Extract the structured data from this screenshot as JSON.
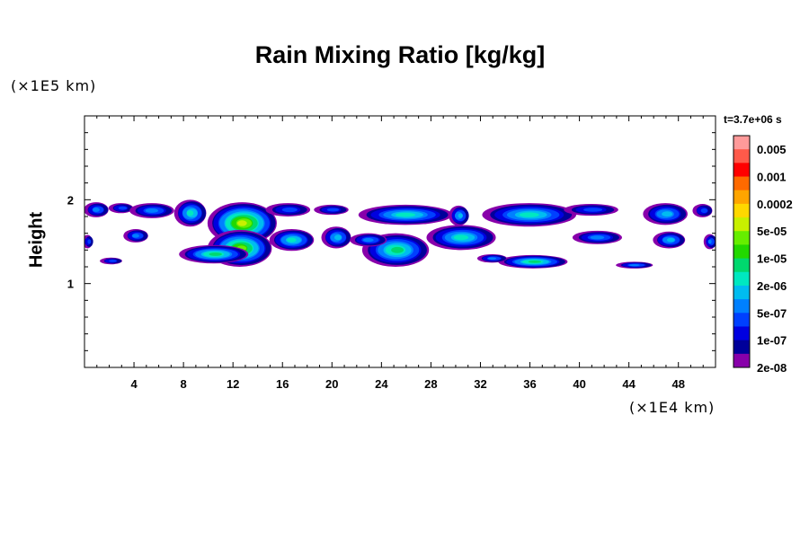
{
  "chart_data": {
    "type": "heatmap",
    "title": "Rain Mixing Ratio [kg/kg]",
    "ylabel": "Height",
    "xlabel": "",
    "x_unit_label": "(×1E4 km)",
    "y_unit_label": "(×1E5 km)",
    "time_label": "t=3.7e+06 s",
    "xlim": [
      0,
      51
    ],
    "ylim": [
      0,
      3
    ],
    "x_ticks": [
      "4",
      "8",
      "12",
      "16",
      "20",
      "24",
      "28",
      "32",
      "36",
      "40",
      "44",
      "48"
    ],
    "x_tick_values": [
      4,
      8,
      12,
      16,
      20,
      24,
      28,
      32,
      36,
      40,
      44,
      48
    ],
    "y_ticks": [
      "1",
      "2"
    ],
    "y_tick_values": [
      1,
      2
    ],
    "colorbar": {
      "labels": [
        "0.005",
        "0.001",
        "0.0002",
        "5e-05",
        "1e-05",
        "2e-06",
        "5e-07",
        "1e-07",
        "2e-08"
      ],
      "colors_top_to_bottom": [
        "#ff9a9a",
        "#ff5a4a",
        "#ff0000",
        "#ff6a00",
        "#ffa500",
        "#ffd800",
        "#c8f000",
        "#66ee00",
        "#22d800",
        "#00d86e",
        "#00e8c0",
        "#00bcf0",
        "#0080ff",
        "#0040ff",
        "#0000e0",
        "#00009a",
        "#8800aa"
      ]
    },
    "cells": [
      {
        "x": 1.0,
        "y": 1.88,
        "rx": 1.0,
        "ry": 0.09,
        "level": 4
      },
      {
        "x": 3.0,
        "y": 1.9,
        "rx": 1.0,
        "ry": 0.06,
        "level": 3
      },
      {
        "x": 5.5,
        "y": 1.87,
        "rx": 1.8,
        "ry": 0.09,
        "level": 4
      },
      {
        "x": 8.6,
        "y": 1.84,
        "rx": 1.3,
        "ry": 0.16,
        "level": 6
      },
      {
        "x": 12.8,
        "y": 1.72,
        "rx": 2.8,
        "ry": 0.25,
        "level": 10
      },
      {
        "x": 12.6,
        "y": 1.42,
        "rx": 2.6,
        "ry": 0.22,
        "level": 9
      },
      {
        "x": 10.5,
        "y": 1.35,
        "rx": 2.8,
        "ry": 0.11,
        "level": 7
      },
      {
        "x": 16.5,
        "y": 1.88,
        "rx": 1.8,
        "ry": 0.08,
        "level": 3
      },
      {
        "x": 20.0,
        "y": 1.88,
        "rx": 1.4,
        "ry": 0.06,
        "level": 3
      },
      {
        "x": 16.8,
        "y": 1.52,
        "rx": 1.8,
        "ry": 0.13,
        "level": 6
      },
      {
        "x": 20.4,
        "y": 1.55,
        "rx": 1.2,
        "ry": 0.13,
        "level": 5
      },
      {
        "x": 26.0,
        "y": 1.82,
        "rx": 3.8,
        "ry": 0.12,
        "level": 6
      },
      {
        "x": 30.3,
        "y": 1.81,
        "rx": 0.8,
        "ry": 0.12,
        "level": 5
      },
      {
        "x": 25.2,
        "y": 1.4,
        "rx": 2.7,
        "ry": 0.2,
        "level": 7
      },
      {
        "x": 23.0,
        "y": 1.52,
        "rx": 1.5,
        "ry": 0.08,
        "level": 4
      },
      {
        "x": 30.5,
        "y": 1.55,
        "rx": 2.8,
        "ry": 0.15,
        "level": 6
      },
      {
        "x": 36.0,
        "y": 1.82,
        "rx": 3.8,
        "ry": 0.14,
        "level": 6
      },
      {
        "x": 41.0,
        "y": 1.88,
        "rx": 2.2,
        "ry": 0.07,
        "level": 3
      },
      {
        "x": 47.0,
        "y": 1.83,
        "rx": 1.8,
        "ry": 0.13,
        "level": 5
      },
      {
        "x": 50.0,
        "y": 1.87,
        "rx": 0.8,
        "ry": 0.08,
        "level": 3
      },
      {
        "x": 36.3,
        "y": 1.26,
        "rx": 2.8,
        "ry": 0.08,
        "level": 7
      },
      {
        "x": 33.0,
        "y": 1.3,
        "rx": 1.2,
        "ry": 0.05,
        "level": 4
      },
      {
        "x": 41.5,
        "y": 1.55,
        "rx": 2.0,
        "ry": 0.08,
        "level": 4
      },
      {
        "x": 47.3,
        "y": 1.52,
        "rx": 1.3,
        "ry": 0.1,
        "level": 5
      },
      {
        "x": 44.5,
        "y": 1.22,
        "rx": 1.5,
        "ry": 0.04,
        "level": 4
      },
      {
        "x": 4.2,
        "y": 1.57,
        "rx": 1.0,
        "ry": 0.08,
        "level": 4
      },
      {
        "x": 0.3,
        "y": 1.5,
        "rx": 0.4,
        "ry": 0.08,
        "level": 3
      },
      {
        "x": 50.6,
        "y": 1.5,
        "rx": 0.5,
        "ry": 0.09,
        "level": 4
      },
      {
        "x": 2.2,
        "y": 1.27,
        "rx": 0.9,
        "ry": 0.04,
        "level": 3
      }
    ]
  }
}
